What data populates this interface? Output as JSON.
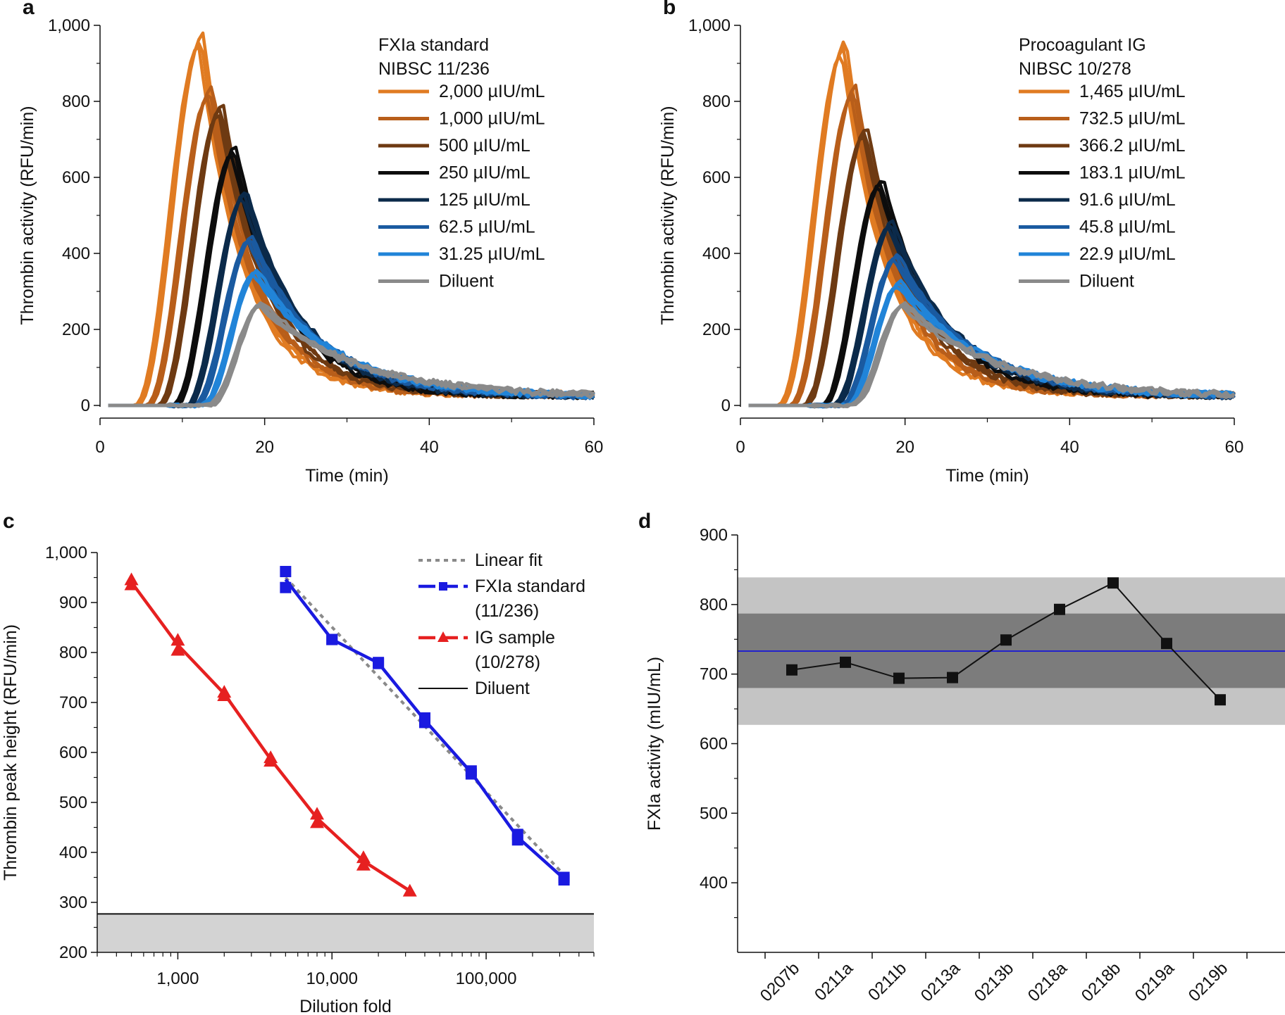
{
  "chart_data": [
    {
      "panel": "a",
      "type": "line",
      "xlabel": "Time (min)",
      "ylabel": "Thrombin activity (RFU/min)",
      "xlim": [
        0,
        60
      ],
      "ylim": [
        0,
        1000
      ],
      "xticks": [
        "0",
        "20",
        "40",
        "60"
      ],
      "yticks": [
        "0",
        "200",
        "400",
        "600",
        "800",
        "1,000"
      ],
      "legend_title": [
        "FXIa standard",
        "NIBSC 11/236"
      ],
      "series": [
        {
          "name": "2,000 µIU/mL",
          "color": "#e07b22",
          "peak": 960,
          "peak_time": 12.3
        },
        {
          "name": "1,000 µIU/mL",
          "color": "#b85e1a",
          "peak": 825,
          "peak_time": 13.4
        },
        {
          "name": "500 µIU/mL",
          "color": "#6e3a12",
          "peak": 780,
          "peak_time": 14.7
        },
        {
          "name": "250 µIU/mL",
          "color": "#0d0d0d",
          "peak": 670,
          "peak_time": 16.3
        },
        {
          "name": "125 µIU/mL",
          "color": "#0b2a4a",
          "peak": 555,
          "peak_time": 17.6
        },
        {
          "name": "62.5 µIU/mL",
          "color": "#1a5aa0",
          "peak": 438,
          "peak_time": 18.3
        },
        {
          "name": "31.25 µIU/mL",
          "color": "#2184d8",
          "peak": 350,
          "peak_time": 19.0
        },
        {
          "name": "Diluent",
          "color": "#8a8a8a",
          "peak": 265,
          "peak_time": 19.6
        }
      ]
    },
    {
      "panel": "b",
      "type": "line",
      "xlabel": "Time (min)",
      "ylabel": "Thrombin activity (RFU/min)",
      "xlim": [
        0,
        60
      ],
      "ylim": [
        0,
        1000
      ],
      "xticks": [
        "0",
        "20",
        "40",
        "60"
      ],
      "yticks": [
        "0",
        "200",
        "400",
        "600",
        "800",
        "1,000"
      ],
      "legend_title": [
        "Procoagulant IG",
        "NIBSC 10/278"
      ],
      "series": [
        {
          "name": "1,465 µIU/mL",
          "color": "#e07b22",
          "peak": 940,
          "peak_time": 12.6
        },
        {
          "name": "732.5 µIU/mL",
          "color": "#b85e1a",
          "peak": 825,
          "peak_time": 13.8
        },
        {
          "name": "366.2 µIU/mL",
          "color": "#6e3a12",
          "peak": 720,
          "peak_time": 15.2
        },
        {
          "name": "183.1 µIU/mL",
          "color": "#0d0d0d",
          "peak": 585,
          "peak_time": 17.1
        },
        {
          "name": "91.6 µIU/mL",
          "color": "#0b2a4a",
          "peak": 475,
          "peak_time": 18.3
        },
        {
          "name": "45.8 µIU/mL",
          "color": "#1a5aa0",
          "peak": 390,
          "peak_time": 19.0
        },
        {
          "name": "22.9 µIU/mL",
          "color": "#2184d8",
          "peak": 320,
          "peak_time": 19.4
        },
        {
          "name": "Diluent",
          "color": "#8a8a8a",
          "peak": 265,
          "peak_time": 19.9
        }
      ]
    },
    {
      "panel": "c",
      "type": "line",
      "xscale": "log",
      "xlabel": "Dilution fold",
      "ylabel": "Thrombin peak height (RFU/min)",
      "xlim": [
        300,
        500000
      ],
      "ylim": [
        200,
        1000
      ],
      "xticks": [
        {
          "value": 1000,
          "label": "1,000"
        },
        {
          "value": 10000,
          "label": "10,000"
        },
        {
          "value": 100000,
          "label": "100,000"
        }
      ],
      "yticks": [
        "200",
        "300",
        "400",
        "500",
        "600",
        "700",
        "800",
        "900",
        "1,000"
      ],
      "legend": [
        "Linear fit",
        "FXIa standard",
        "(11/236)",
        "IG sample",
        "(10/278)",
        "Diluent"
      ],
      "diluent_level": 277,
      "linear_fit": {
        "x": [
          5000,
          320000
        ],
        "y": [
          950,
          355
        ]
      },
      "series": [
        {
          "name": "FXIa standard (11/236)",
          "color": "#1a1ae0",
          "x": [
            5000,
            5000,
            10000,
            10000,
            20000,
            20000,
            40000,
            40000,
            80000,
            80000,
            160000,
            160000,
            320000,
            320000
          ],
          "y": [
            962,
            930,
            826,
            826,
            780,
            778,
            669,
            660,
            563,
            557,
            436,
            425,
            350,
            345
          ]
        },
        {
          "name": "IG sample (10/278)",
          "color": "#e62020",
          "x": [
            500,
            500,
            1000,
            1000,
            2000,
            2000,
            4000,
            4000,
            8000,
            8000,
            16000,
            16000,
            32000
          ],
          "y": [
            946,
            936,
            825,
            805,
            721,
            714,
            590,
            583,
            477,
            460,
            390,
            375,
            323
          ]
        }
      ]
    },
    {
      "panel": "d",
      "type": "line",
      "xlabel": "",
      "ylabel": "FXIa activity (mIU/mL)",
      "ylim": [
        300,
        900
      ],
      "yticks": [
        "400",
        "500",
        "600",
        "700",
        "800",
        "900"
      ],
      "categories": [
        "0207b",
        "0211a",
        "0211b",
        "0213a",
        "0213b",
        "0218a",
        "0218b",
        "0219a",
        "0219b"
      ],
      "values": [
        706,
        717,
        694,
        695,
        749,
        793,
        831,
        744,
        663
      ],
      "mean": 733,
      "band_inner": [
        680,
        787
      ],
      "band_outer": [
        627,
        839
      ]
    }
  ]
}
